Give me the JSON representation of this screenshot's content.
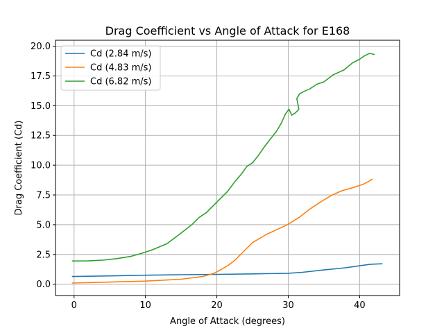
{
  "chart_data": {
    "type": "line",
    "title": "Drag Coefficient vs Angle of Attack for E168",
    "xlabel": "Angle of Attack (degrees)",
    "ylabel": "Drag Coefficient (Cd)",
    "xlim": [
      -2.6,
      45.6
    ],
    "ylim": [
      -0.95,
      20.5
    ],
    "xticks": [
      0,
      10,
      20,
      30,
      40
    ],
    "xtick_labels": [
      "0",
      "10",
      "20",
      "30",
      "40"
    ],
    "yticks": [
      0,
      2.5,
      5,
      7.5,
      10,
      12.5,
      15,
      17.5,
      20
    ],
    "ytick_labels": [
      "0.0",
      "2.5",
      "5.0",
      "7.5",
      "10.0",
      "12.5",
      "15.0",
      "17.5",
      "20.0"
    ],
    "grid": true,
    "legend_position": "top-left",
    "series": [
      {
        "name": "Cd (2.84 m/s)",
        "color": "#1f77b4",
        "x": [
          -0.3,
          5,
          10,
          15,
          20,
          25,
          30,
          32,
          35,
          38,
          40,
          41.5,
          43.2
        ],
        "y": [
          0.65,
          0.7,
          0.76,
          0.8,
          0.83,
          0.87,
          0.92,
          1.0,
          1.2,
          1.38,
          1.55,
          1.68,
          1.72
        ]
      },
      {
        "name": "Cd (4.83 m/s)",
        "color": "#ff7f0e",
        "x": [
          -0.3,
          5,
          10,
          15,
          18,
          19.5,
          20.5,
          21.5,
          22.5,
          23.5,
          25,
          27,
          29,
          30,
          31.5,
          33,
          34.5,
          36,
          37.5,
          39,
          40.5,
          41.3,
          41.8
        ],
        "y": [
          0.1,
          0.18,
          0.26,
          0.42,
          0.65,
          0.9,
          1.2,
          1.55,
          2.0,
          2.6,
          3.5,
          4.2,
          4.75,
          5.05,
          5.6,
          6.3,
          6.9,
          7.45,
          7.85,
          8.1,
          8.4,
          8.65,
          8.85
        ]
      },
      {
        "name": "Cd (6.82 m/s)",
        "color": "#2ca02c",
        "x": [
          -0.3,
          2,
          4,
          6,
          8,
          9.5,
          11,
          13,
          15,
          16.5,
          17.5,
          18.5,
          19.5,
          20.5,
          21.5,
          22.5,
          23.5,
          24.2,
          25,
          25.8,
          26.6,
          27.5,
          28.3,
          29,
          29.6,
          30.1,
          30.5,
          31,
          31.5,
          31.2,
          31.6,
          32.2,
          33,
          34,
          35,
          36.3,
          37.8,
          39,
          40,
          40.7,
          41.4,
          42.1
        ],
        "y": [
          1.95,
          1.96,
          2.02,
          2.15,
          2.35,
          2.6,
          2.9,
          3.4,
          4.3,
          5.0,
          5.6,
          6.0,
          6.6,
          7.2,
          7.8,
          8.6,
          9.3,
          9.9,
          10.2,
          10.8,
          11.5,
          12.2,
          12.8,
          13.5,
          14.3,
          14.7,
          14.2,
          14.4,
          14.7,
          15.6,
          16.0,
          16.2,
          16.4,
          16.8,
          17.0,
          17.6,
          18.0,
          18.6,
          18.9,
          19.2,
          19.4,
          19.3
        ]
      }
    ]
  }
}
